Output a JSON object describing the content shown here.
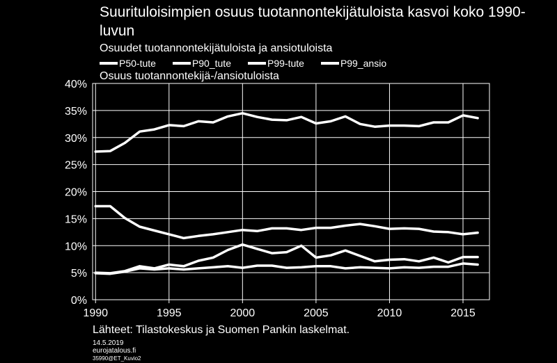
{
  "title": "Suurituloisimpien osuus tuotannontekijätuloista kasvoi koko 1990-luvun",
  "subtitle": "Osuudet tuotannontekijätuloista ja ansiotuloista",
  "axis_label": "Osuus tuotannontekijä-/ansiotuloista",
  "legend": [
    "P50-tute",
    "P90_tute",
    "P99-tute",
    "P99_ansio"
  ],
  "source": "Lähteet: Tilastokeskus ja Suomen Pankin laskelmat.",
  "date": "14.5.2019",
  "site": "eurojatalous.fi",
  "code": "35990@ET_Kuvio2",
  "colors": {
    "background": "#000000",
    "line": "#ffffff",
    "grid": "#ffffff"
  },
  "chart_data": {
    "type": "line",
    "title": "Suurituloisimpien osuus tuotannontekijätuloista kasvoi koko 1990-luvun",
    "ylabel": "Osuus tuotannontekijä-/ansiotuloista",
    "xlabel": "",
    "xlim": [
      1989.8,
      2016.8
    ],
    "ylim": [
      0,
      40
    ],
    "y_ticks": [
      0,
      5,
      10,
      15,
      20,
      25,
      30,
      35,
      40
    ],
    "y_tick_labels": [
      "0%",
      "5%",
      "10%",
      "15%",
      "20%",
      "25%",
      "30%",
      "35%",
      "40%"
    ],
    "x_ticks": [
      1990,
      1995,
      2000,
      2005,
      2010,
      2015
    ],
    "x_tick_labels": [
      "1990",
      "1995",
      "2000",
      "2005",
      "2010",
      "2015"
    ],
    "grid": true,
    "x": [
      1990,
      1991,
      1992,
      1993,
      1994,
      1995,
      1996,
      1997,
      1998,
      1999,
      2000,
      2001,
      2002,
      2003,
      2004,
      2005,
      2006,
      2007,
      2008,
      2009,
      2010,
      2011,
      2012,
      2013,
      2014,
      2015,
      2016
    ],
    "series": [
      {
        "name": "P50-tute",
        "values": [
          27.4,
          27.5,
          29.0,
          31.1,
          31.5,
          32.3,
          32.1,
          33.0,
          32.8,
          33.9,
          34.5,
          33.8,
          33.3,
          33.2,
          33.8,
          32.6,
          33.0,
          33.9,
          32.5,
          32.0,
          32.2,
          32.2,
          32.1,
          32.8,
          32.8,
          34.1,
          33.6
        ]
      },
      {
        "name": "P90_tute",
        "values": [
          17.3,
          17.3,
          15.1,
          13.5,
          12.8,
          12.1,
          11.4,
          11.8,
          12.1,
          12.5,
          12.9,
          12.7,
          13.2,
          13.2,
          12.9,
          13.3,
          13.3,
          13.7,
          14.0,
          13.6,
          13.1,
          13.2,
          13.1,
          12.6,
          12.5,
          12.1,
          12.4
        ]
      },
      {
        "name": "P99-tute",
        "values": [
          5.0,
          4.9,
          5.3,
          6.2,
          5.8,
          6.5,
          6.2,
          7.2,
          7.8,
          9.2,
          10.2,
          9.4,
          8.6,
          8.8,
          10.0,
          7.8,
          8.2,
          9.1,
          8.1,
          7.1,
          7.4,
          7.5,
          7.1,
          7.8,
          6.9,
          7.9,
          7.9
        ]
      },
      {
        "name": "P99_ansio",
        "values": [
          4.9,
          4.8,
          5.2,
          5.8,
          5.6,
          5.8,
          5.6,
          5.8,
          6.0,
          6.2,
          5.9,
          6.3,
          6.3,
          5.9,
          6.0,
          6.2,
          6.2,
          5.8,
          6.0,
          5.9,
          5.8,
          6.0,
          5.9,
          6.1,
          6.1,
          6.7,
          6.5
        ]
      }
    ]
  }
}
